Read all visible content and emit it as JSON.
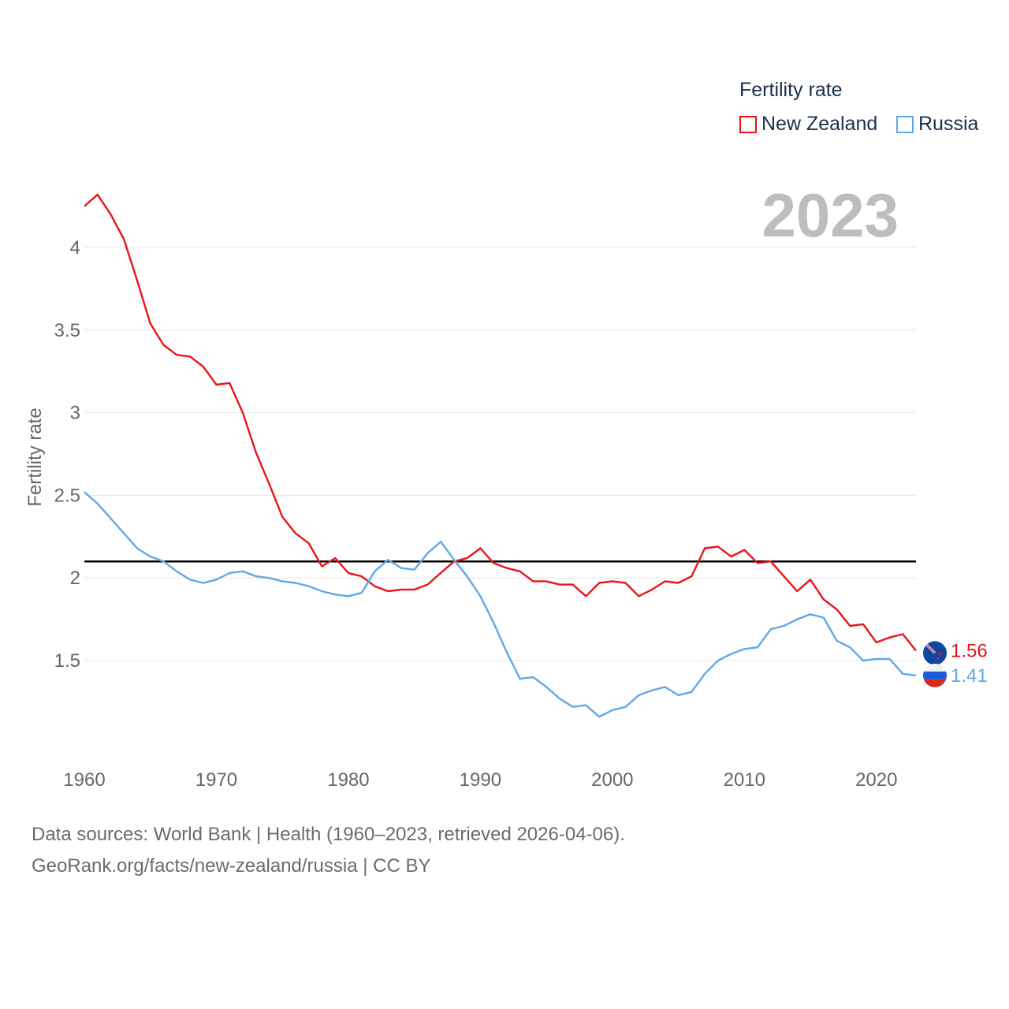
{
  "legend": {
    "title": "Fertility rate",
    "items": [
      {
        "label": "New Zealand",
        "color": "#e8141b"
      },
      {
        "label": "Russia",
        "color": "#62a8e5"
      }
    ]
  },
  "current_year": "2023",
  "end_labels": {
    "new_zealand": "1.56",
    "russia": "1.41"
  },
  "footer": {
    "line1": "Data sources: World Bank | Health (1960–2023, retrieved 2026-04-06).",
    "line2": "GeoRank.org/facts/new-zealand/russia | CC BY"
  },
  "chart_data": {
    "type": "line",
    "title": "Fertility rate",
    "xlabel": "",
    "ylabel": "Fertility rate",
    "xlim": [
      1960,
      2023
    ],
    "ylim": [
      1.0,
      4.35
    ],
    "x_ticks": [
      1960,
      1970,
      1980,
      1990,
      2000,
      2010,
      2020
    ],
    "y_ticks": [
      1.5,
      2,
      2.5,
      3,
      3.5,
      4
    ],
    "y_tick_labels": [
      "1.5",
      "2",
      "2.5",
      "3",
      "3.5",
      "4"
    ],
    "reference_line": {
      "y": 2.1,
      "color": "#000000"
    },
    "x": [
      1960,
      1961,
      1962,
      1963,
      1964,
      1965,
      1966,
      1967,
      1968,
      1969,
      1970,
      1971,
      1972,
      1973,
      1974,
      1975,
      1976,
      1977,
      1978,
      1979,
      1980,
      1981,
      1982,
      1983,
      1984,
      1985,
      1986,
      1987,
      1988,
      1989,
      1990,
      1991,
      1992,
      1993,
      1994,
      1995,
      1996,
      1997,
      1998,
      1999,
      2000,
      2001,
      2002,
      2003,
      2004,
      2005,
      2006,
      2007,
      2008,
      2009,
      2010,
      2011,
      2012,
      2013,
      2014,
      2015,
      2016,
      2017,
      2018,
      2019,
      2020,
      2021,
      2022,
      2023
    ],
    "series": [
      {
        "name": "New Zealand",
        "color": "#e8141b",
        "values": [
          4.25,
          4.32,
          4.2,
          4.05,
          3.8,
          3.54,
          3.41,
          3.35,
          3.34,
          3.28,
          3.17,
          3.18,
          3.0,
          2.76,
          2.57,
          2.37,
          2.27,
          2.21,
          2.07,
          2.12,
          2.03,
          2.01,
          1.95,
          1.92,
          1.93,
          1.93,
          1.96,
          2.03,
          2.1,
          2.12,
          2.18,
          2.09,
          2.06,
          2.04,
          1.98,
          1.98,
          1.96,
          1.96,
          1.89,
          1.97,
          1.98,
          1.97,
          1.89,
          1.93,
          1.98,
          1.97,
          2.01,
          2.18,
          2.19,
          2.13,
          2.17,
          2.09,
          2.1,
          2.01,
          1.92,
          1.99,
          1.87,
          1.81,
          1.71,
          1.72,
          1.61,
          1.64,
          1.66,
          1.56
        ]
      },
      {
        "name": "Russia",
        "color": "#62a8e5",
        "values": [
          2.52,
          2.45,
          2.36,
          2.27,
          2.18,
          2.13,
          2.1,
          2.04,
          1.99,
          1.97,
          1.99,
          2.03,
          2.04,
          2.01,
          2.0,
          1.98,
          1.97,
          1.95,
          1.92,
          1.9,
          1.89,
          1.91,
          2.04,
          2.11,
          2.06,
          2.05,
          2.15,
          2.22,
          2.11,
          2.01,
          1.89,
          1.73,
          1.55,
          1.39,
          1.4,
          1.34,
          1.27,
          1.22,
          1.23,
          1.16,
          1.2,
          1.22,
          1.29,
          1.32,
          1.34,
          1.29,
          1.31,
          1.42,
          1.5,
          1.54,
          1.57,
          1.58,
          1.69,
          1.71,
          1.75,
          1.78,
          1.76,
          1.62,
          1.58,
          1.5,
          1.51,
          1.51,
          1.42,
          1.41
        ]
      }
    ]
  }
}
